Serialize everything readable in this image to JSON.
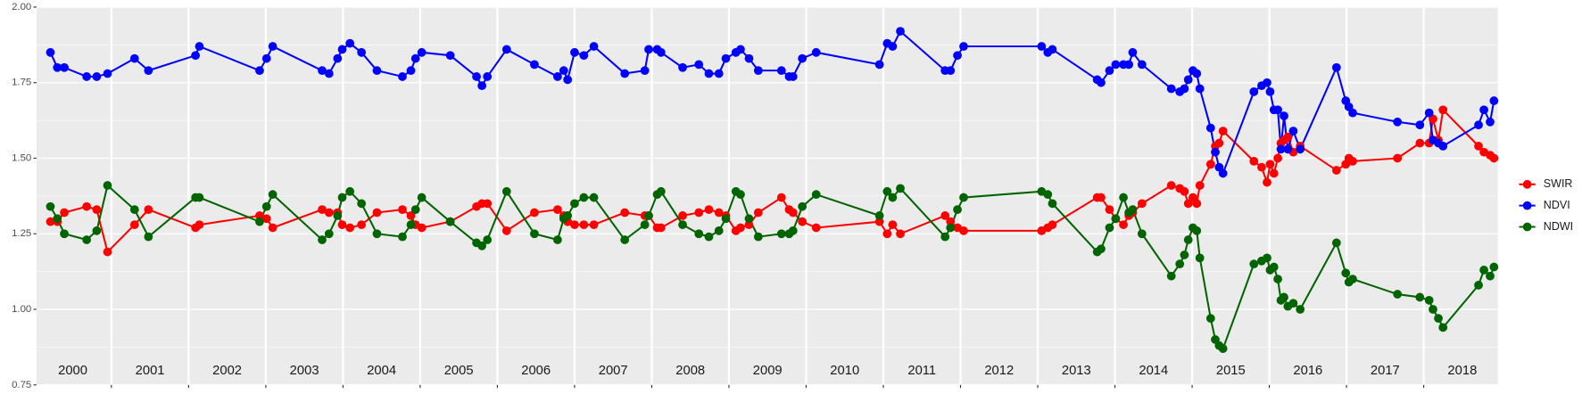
{
  "chart_data": {
    "type": "line",
    "x": [
      2000.21,
      2000.3,
      2000.39,
      2000.68,
      2000.81,
      2000.95,
      2001.3,
      2001.48,
      2002.09,
      2002.14,
      2002.92,
      2003.01,
      2003.09,
      2003.73,
      2003.82,
      2003.93,
      2003.99,
      2004.09,
      2004.24,
      2004.44,
      2004.77,
      2004.88,
      2004.94,
      2005.02,
      2005.39,
      2005.73,
      2005.8,
      2005.87,
      2006.12,
      2006.48,
      2006.78,
      2006.86,
      2006.91,
      2007.0,
      2007.12,
      2007.25,
      2007.65,
      2007.91,
      2007.96,
      2008.07,
      2008.12,
      2008.4,
      2008.61,
      2008.74,
      2008.87,
      2008.96,
      2009.09,
      2009.15,
      2009.26,
      2009.38,
      2009.68,
      2009.78,
      2009.83,
      2009.95,
      2010.13,
      2010.95,
      2011.05,
      2011.12,
      2011.22,
      2011.8,
      2011.87,
      2011.96,
      2012.04,
      2013.05,
      2013.13,
      2013.19,
      2013.77,
      2013.82,
      2013.93,
      2014.01,
      2014.11,
      2014.18,
      2014.23,
      2014.35,
      2014.73,
      2014.84,
      2014.9,
      2014.95,
      2015.01,
      2015.06,
      2015.1,
      2015.24,
      2015.3,
      2015.35,
      2015.4,
      2015.8,
      2015.9,
      2015.97,
      2016.01,
      2016.06,
      2016.11,
      2016.15,
      2016.19,
      2016.24,
      2016.31,
      2016.4,
      2016.87,
      2016.99,
      2017.03,
      2017.08,
      2017.66,
      2017.95,
      2018.07,
      2018.12,
      2018.19,
      2018.25,
      2018.71,
      2018.78,
      2018.86,
      2018.91
    ],
    "series": [
      {
        "name": "SWIR",
        "color": "#ff0000",
        "values": [
          1.29,
          1.29,
          1.32,
          1.34,
          1.33,
          1.19,
          1.28,
          1.33,
          1.27,
          1.28,
          1.31,
          1.3,
          1.27,
          1.33,
          1.32,
          1.32,
          1.28,
          1.27,
          1.28,
          1.32,
          1.33,
          1.31,
          1.28,
          1.27,
          1.29,
          1.34,
          1.35,
          1.35,
          1.26,
          1.32,
          1.33,
          1.31,
          1.29,
          1.28,
          1.28,
          1.28,
          1.32,
          1.31,
          1.31,
          1.27,
          1.27,
          1.31,
          1.32,
          1.33,
          1.32,
          1.31,
          1.26,
          1.27,
          1.28,
          1.32,
          1.37,
          1.33,
          1.32,
          1.29,
          1.27,
          1.29,
          1.25,
          1.28,
          1.25,
          1.31,
          1.29,
          1.27,
          1.26,
          1.26,
          1.27,
          1.28,
          1.37,
          1.37,
          1.33,
          1.3,
          1.28,
          1.31,
          1.32,
          1.35,
          1.41,
          1.4,
          1.39,
          1.35,
          1.37,
          1.35,
          1.41,
          1.48,
          1.54,
          1.55,
          1.59,
          1.49,
          1.47,
          1.42,
          1.48,
          1.45,
          1.5,
          1.55,
          1.56,
          1.57,
          1.52,
          1.54,
          1.46,
          1.48,
          1.5,
          1.49,
          1.5,
          1.55,
          1.55,
          1.63,
          1.56,
          1.66,
          1.54,
          1.52,
          1.51,
          1.5
        ]
      },
      {
        "name": "NDVI",
        "color": "#0000ff",
        "values": [
          1.85,
          1.8,
          1.8,
          1.77,
          1.77,
          1.78,
          1.83,
          1.79,
          1.84,
          1.87,
          1.79,
          1.83,
          1.87,
          1.79,
          1.78,
          1.83,
          1.86,
          1.88,
          1.85,
          1.79,
          1.77,
          1.79,
          1.83,
          1.85,
          1.84,
          1.77,
          1.74,
          1.77,
          1.86,
          1.81,
          1.77,
          1.79,
          1.76,
          1.85,
          1.84,
          1.87,
          1.78,
          1.79,
          1.86,
          1.86,
          1.85,
          1.8,
          1.81,
          1.78,
          1.78,
          1.83,
          1.85,
          1.86,
          1.83,
          1.79,
          1.79,
          1.77,
          1.77,
          1.83,
          1.85,
          1.81,
          1.88,
          1.87,
          1.92,
          1.79,
          1.79,
          1.84,
          1.87,
          1.87,
          1.85,
          1.86,
          1.76,
          1.75,
          1.79,
          1.81,
          1.81,
          1.81,
          1.85,
          1.81,
          1.73,
          1.72,
          1.73,
          1.76,
          1.79,
          1.78,
          1.73,
          1.6,
          1.52,
          1.47,
          1.45,
          1.72,
          1.74,
          1.75,
          1.72,
          1.66,
          1.66,
          1.53,
          1.64,
          1.53,
          1.59,
          1.53,
          1.8,
          1.69,
          1.67,
          1.65,
          1.62,
          1.61,
          1.65,
          1.56,
          1.55,
          1.54,
          1.61,
          1.66,
          1.62,
          1.69
        ]
      },
      {
        "name": "NDWI",
        "color": "#006400",
        "values": [
          1.34,
          1.3,
          1.25,
          1.23,
          1.26,
          1.41,
          1.33,
          1.24,
          1.37,
          1.37,
          1.29,
          1.34,
          1.38,
          1.23,
          1.25,
          1.31,
          1.37,
          1.39,
          1.35,
          1.25,
          1.24,
          1.28,
          1.33,
          1.37,
          1.29,
          1.22,
          1.21,
          1.23,
          1.39,
          1.25,
          1.23,
          1.3,
          1.31,
          1.35,
          1.37,
          1.37,
          1.23,
          1.28,
          1.31,
          1.38,
          1.39,
          1.28,
          1.25,
          1.24,
          1.26,
          1.3,
          1.39,
          1.38,
          1.3,
          1.24,
          1.25,
          1.25,
          1.26,
          1.34,
          1.38,
          1.31,
          1.39,
          1.37,
          1.4,
          1.24,
          1.27,
          1.33,
          1.37,
          1.39,
          1.38,
          1.35,
          1.19,
          1.2,
          1.27,
          1.3,
          1.37,
          1.32,
          1.33,
          1.25,
          1.11,
          1.15,
          1.18,
          1.23,
          1.27,
          1.26,
          1.17,
          0.97,
          0.9,
          0.88,
          0.87,
          1.15,
          1.16,
          1.17,
          1.13,
          1.14,
          1.1,
          1.03,
          1.04,
          1.01,
          1.02,
          1.0,
          1.22,
          1.12,
          1.09,
          1.1,
          1.05,
          1.04,
          1.03,
          1.0,
          0.97,
          0.94,
          1.08,
          1.13,
          1.11,
          1.14
        ]
      }
    ],
    "xlim": [
      2000.03,
      2018.96
    ],
    "xticks": [
      {
        "value": 2000.5,
        "label": "2000"
      },
      {
        "value": 2001.5,
        "label": "2001"
      },
      {
        "value": 2002.5,
        "label": "2002"
      },
      {
        "value": 2003.5,
        "label": "2003"
      },
      {
        "value": 2004.5,
        "label": "2004"
      },
      {
        "value": 2005.5,
        "label": "2005"
      },
      {
        "value": 2006.5,
        "label": "2006"
      },
      {
        "value": 2007.5,
        "label": "2007"
      },
      {
        "value": 2008.5,
        "label": "2008"
      },
      {
        "value": 2009.5,
        "label": "2009"
      },
      {
        "value": 2010.5,
        "label": "2010"
      },
      {
        "value": 2011.5,
        "label": "2011"
      },
      {
        "value": 2012.5,
        "label": "2012"
      },
      {
        "value": 2013.5,
        "label": "2013"
      },
      {
        "value": 2014.5,
        "label": "2014"
      },
      {
        "value": 2015.5,
        "label": "2015"
      },
      {
        "value": 2016.5,
        "label": "2016"
      },
      {
        "value": 2017.5,
        "label": "2017"
      },
      {
        "value": 2018.5,
        "label": "2018"
      }
    ],
    "xgrid": [
      2001,
      2002,
      2003,
      2004,
      2005,
      2006,
      2007,
      2008,
      2009,
      2010,
      2011,
      2012,
      2013,
      2014,
      2015,
      2016,
      2017,
      2018
    ],
    "ylim": [
      0.75,
      2.0
    ],
    "yticks": [
      0.75,
      {
        "value": 1.0,
        "label": "1.00"
      },
      1.25,
      {
        "value": 1.5,
        "label": "1.50"
      },
      1.75,
      {
        "value": 2.0,
        "label": "2.00"
      }
    ],
    "grid": true,
    "legend": "right"
  }
}
